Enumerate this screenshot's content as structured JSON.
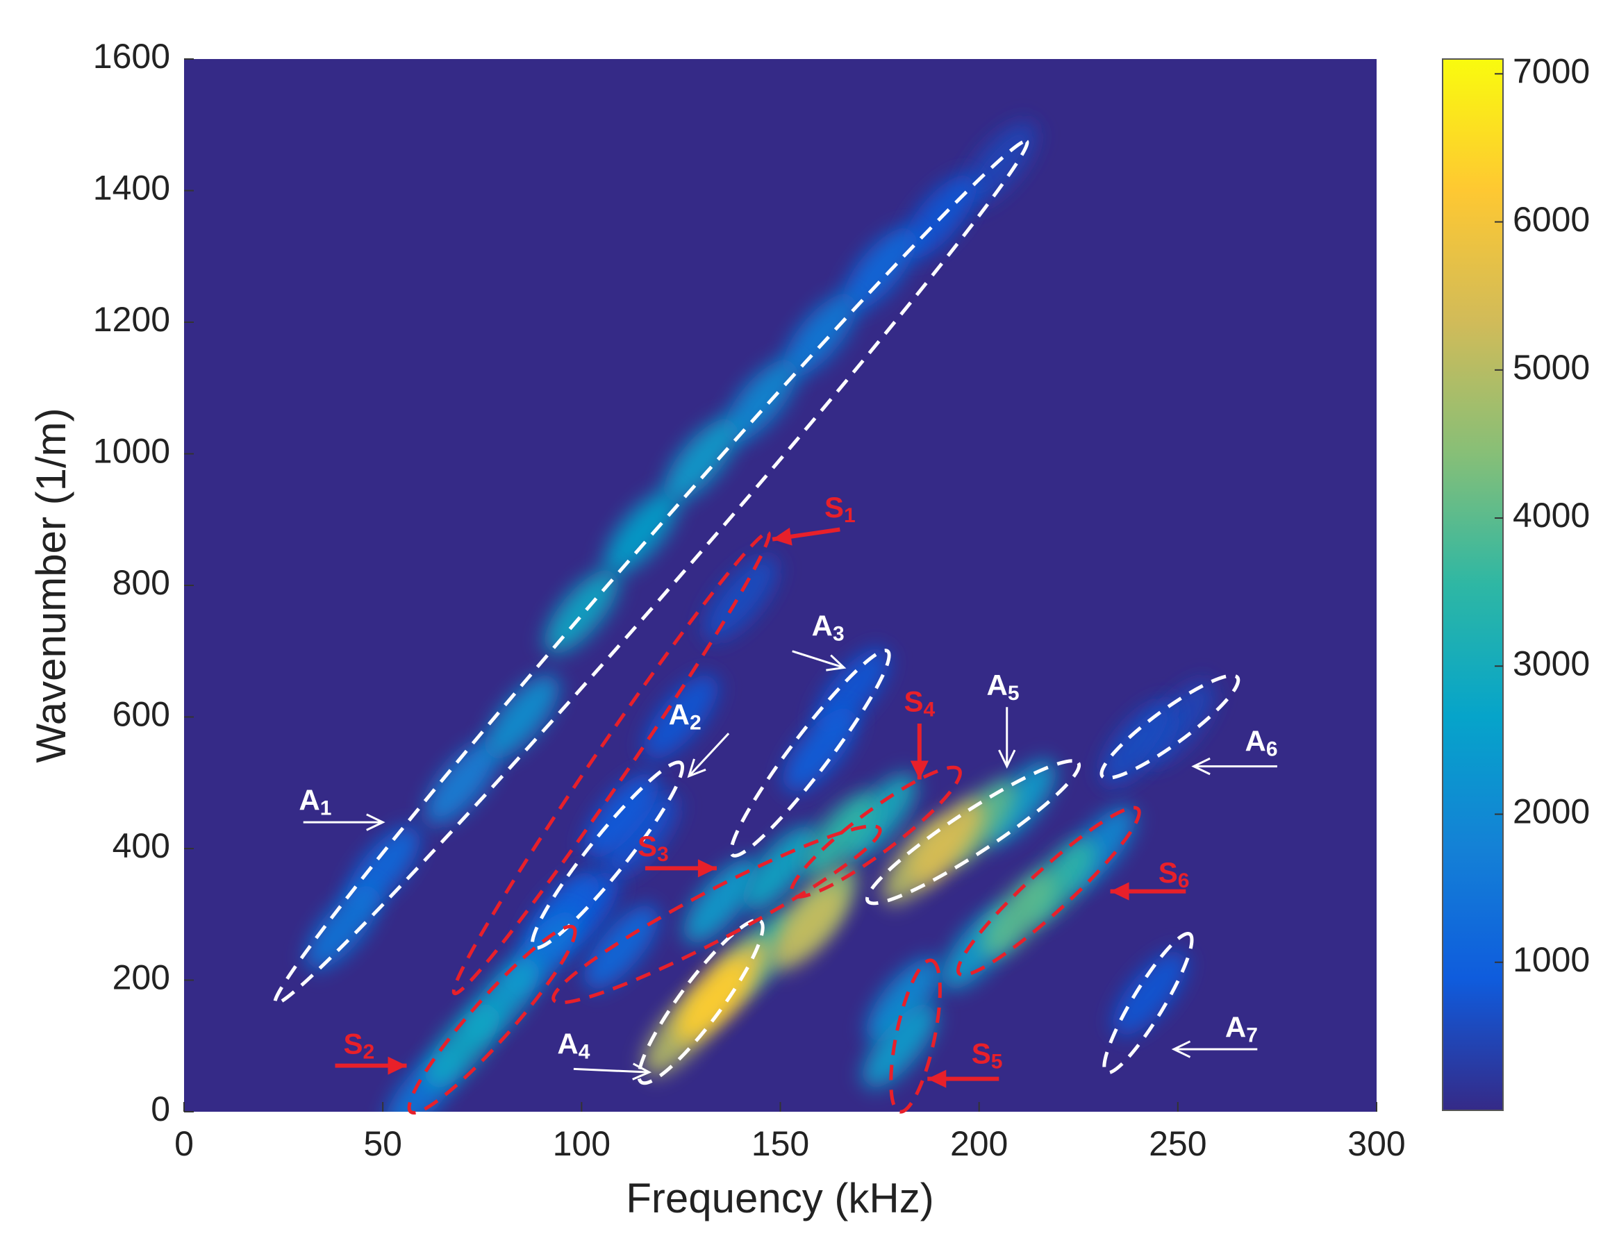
{
  "chart_data": {
    "type": "heatmap",
    "xlabel": "Frequency (kHz)",
    "ylabel": "Wavenumber (1/m)",
    "xlim": [
      0,
      300
    ],
    "ylim": [
      0,
      1600
    ],
    "xticks": [
      0,
      50,
      100,
      150,
      200,
      250,
      300
    ],
    "yticks": [
      0,
      200,
      400,
      600,
      800,
      1000,
      1200,
      1400,
      1600
    ],
    "clim": [
      0,
      7100
    ],
    "colorbar_ticks": [
      1000,
      2000,
      3000,
      4000,
      5000,
      6000,
      7000
    ],
    "colormap": "parula",
    "x": [
      40,
      50,
      70,
      85,
      100,
      115,
      130,
      145,
      160,
      175,
      190,
      205,
      60,
      70,
      80,
      90,
      95,
      110,
      125,
      140,
      100,
      115,
      160,
      168,
      125,
      133,
      138,
      145,
      157,
      160,
      110,
      135,
      150,
      165,
      175,
      185,
      192,
      200,
      210,
      210,
      220,
      200,
      230,
      180,
      181,
      240,
      250,
      243
    ],
    "y": [
      280,
      370,
      500,
      600,
      760,
      880,
      990,
      1080,
      1180,
      1280,
      1360,
      1440,
      30,
      100,
      170,
      240,
      300,
      450,
      600,
      780,
      300,
      420,
      550,
      640,
      120,
      170,
      200,
      240,
      280,
      310,
      250,
      320,
      370,
      420,
      450,
      380,
      410,
      440,
      470,
      300,
      350,
      250,
      400,
      100,
      170,
      560,
      590,
      180
    ],
    "values": [
      1500,
      1200,
      1800,
      2200,
      2800,
      2600,
      2500,
      2000,
      1600,
      1200,
      800,
      500,
      1500,
      2800,
      2500,
      1500,
      1000,
      900,
      800,
      600,
      800,
      700,
      1000,
      800,
      5000,
      6300,
      5500,
      3500,
      5200,
      4500,
      1200,
      2500,
      2800,
      3500,
      3000,
      5000,
      5500,
      4000,
      2500,
      4000,
      3500,
      2500,
      2000,
      2500,
      2000,
      600,
      500,
      800
    ],
    "annotations": [
      {
        "text": "A",
        "subscript": "1",
        "color": "#ffffff"
      },
      {
        "text": "A",
        "subscript": "2",
        "color": "#ffffff"
      },
      {
        "text": "A",
        "subscript": "3",
        "color": "#ffffff"
      },
      {
        "text": "A",
        "subscript": "4",
        "color": "#ffffff"
      },
      {
        "text": "A",
        "subscript": "5",
        "color": "#ffffff"
      },
      {
        "text": "A",
        "subscript": "6",
        "color": "#ffffff"
      },
      {
        "text": "A",
        "subscript": "7",
        "color": "#ffffff"
      },
      {
        "text": "S",
        "subscript": "1",
        "color": "#e8202a"
      },
      {
        "text": "S",
        "subscript": "2",
        "color": "#e8202a"
      },
      {
        "text": "S",
        "subscript": "3",
        "color": "#e8202a"
      },
      {
        "text": "S",
        "subscript": "4",
        "color": "#e8202a"
      },
      {
        "text": "S",
        "subscript": "5",
        "color": "#e8202a"
      },
      {
        "text": "S",
        "subscript": "6",
        "color": "#e8202a"
      }
    ]
  }
}
